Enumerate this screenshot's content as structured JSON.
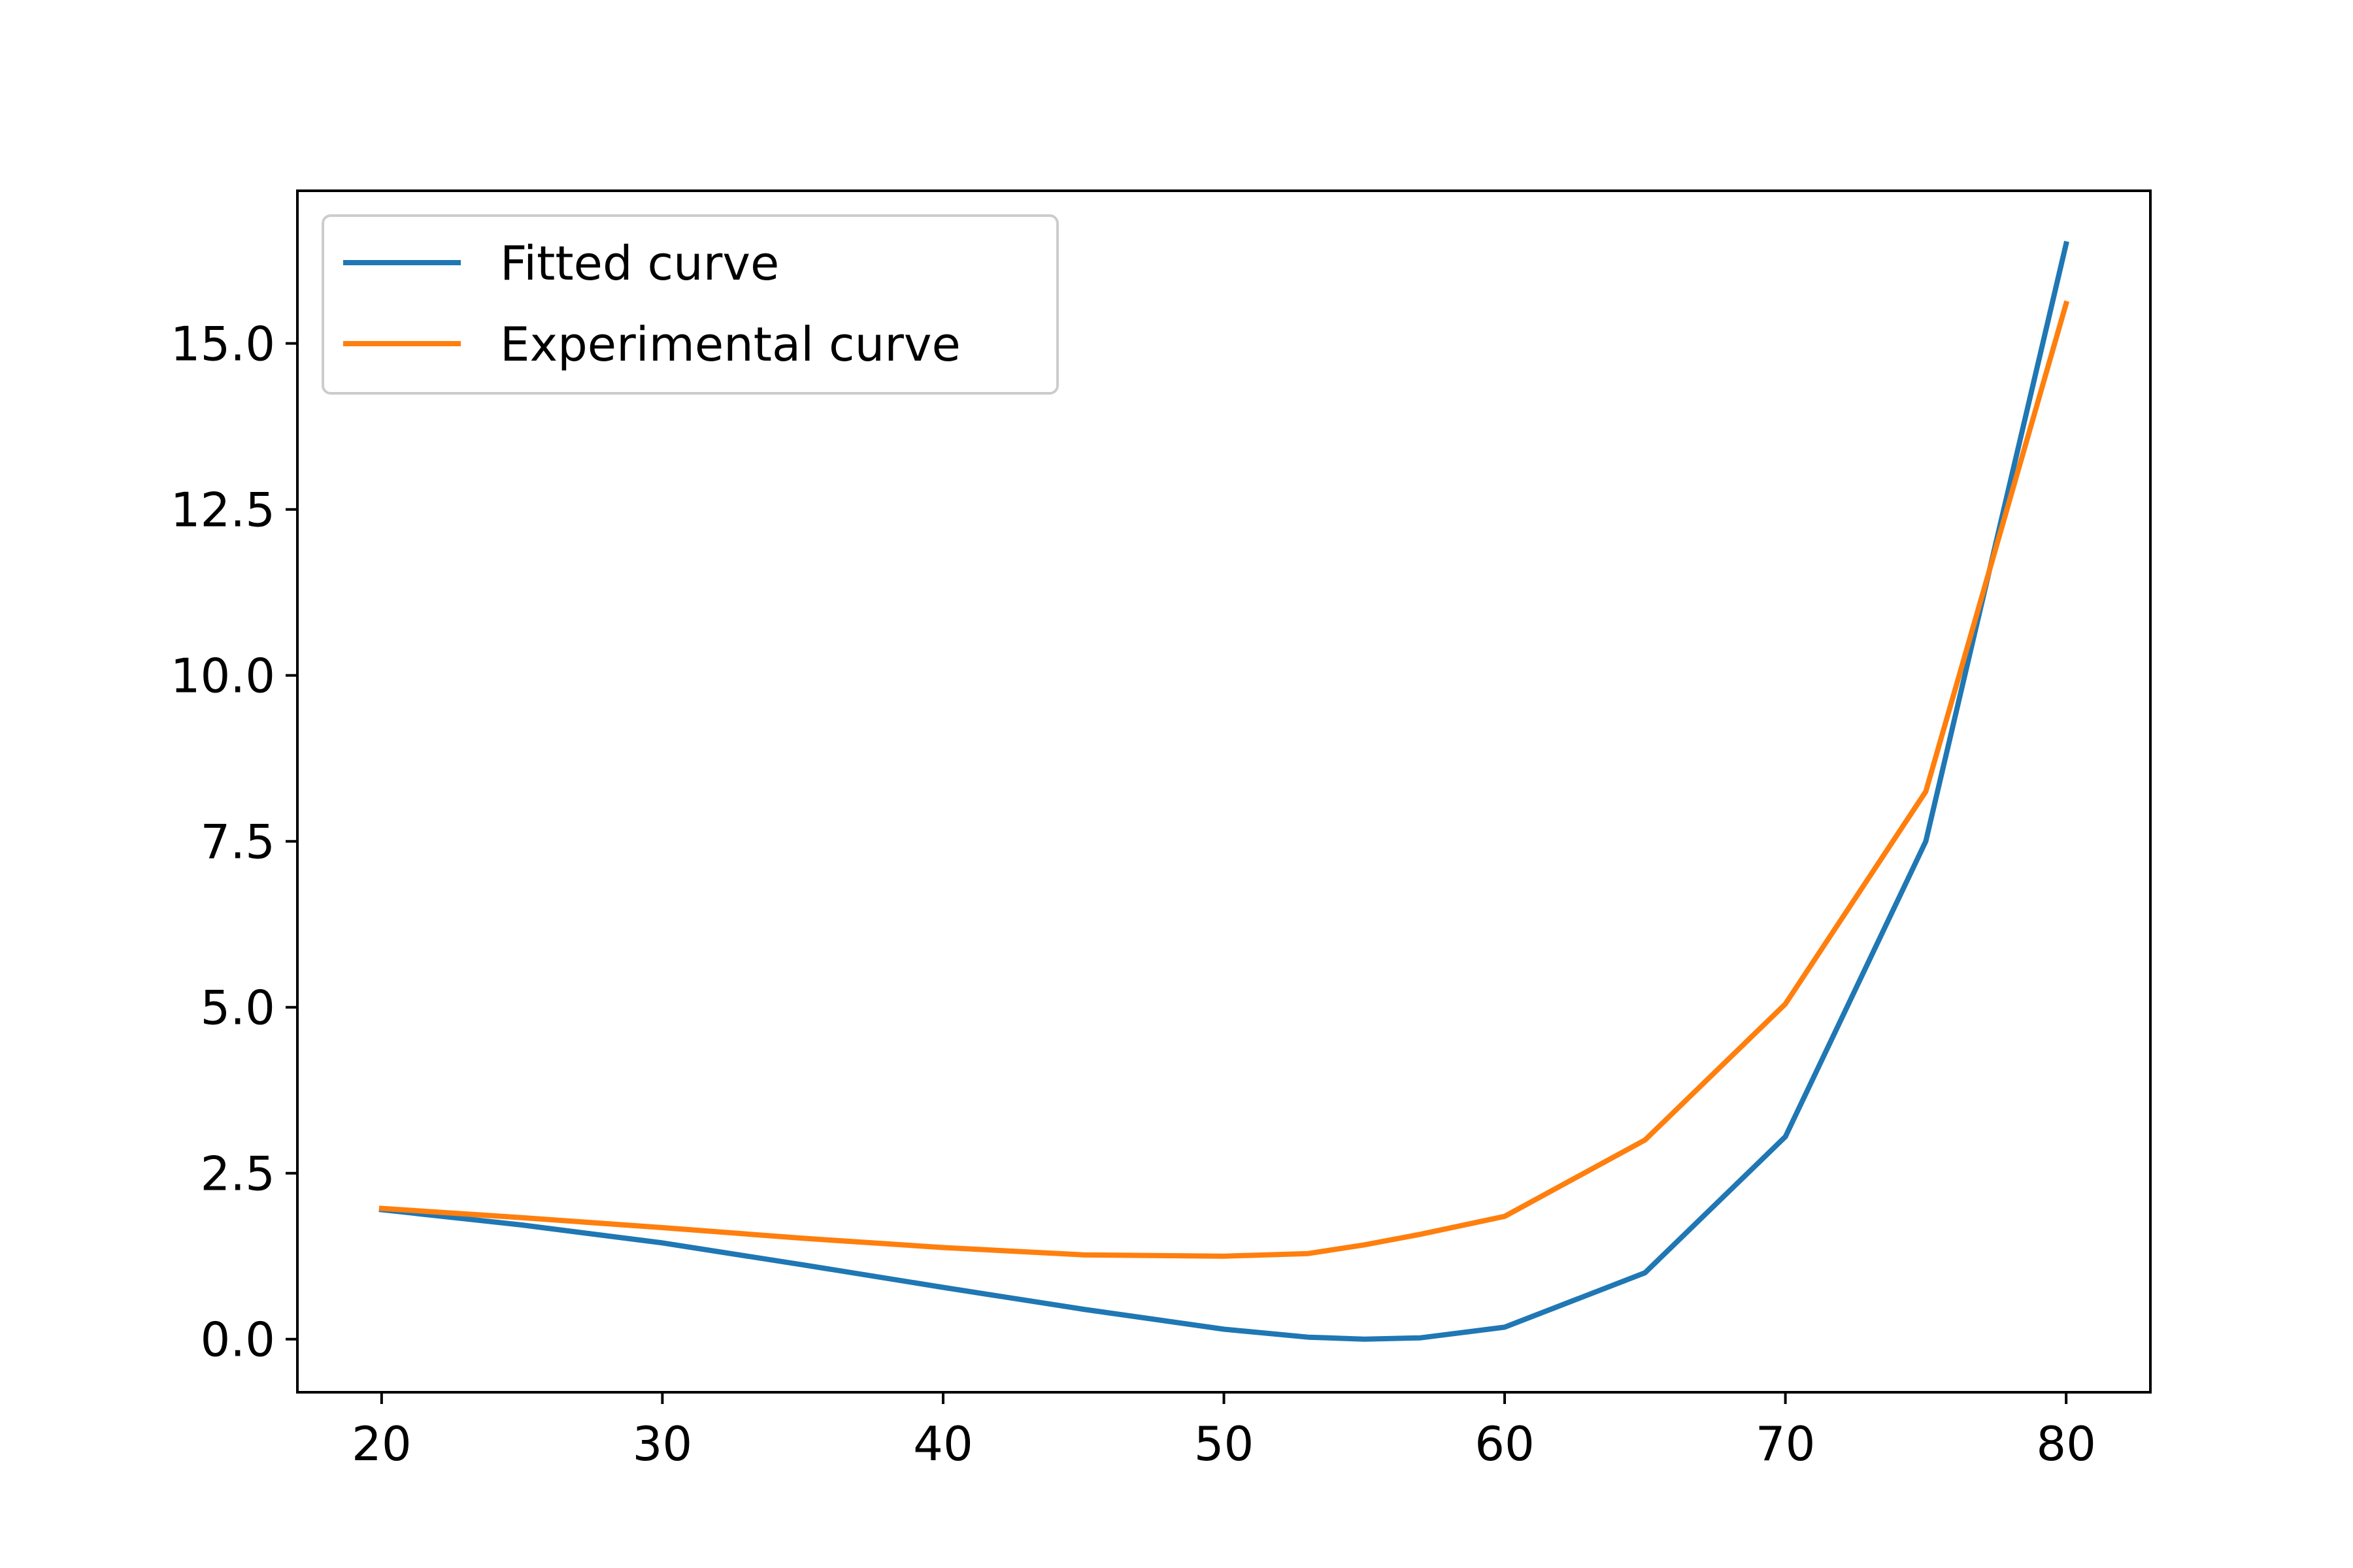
{
  "chart_data": {
    "type": "line",
    "title": "",
    "xlabel": "",
    "ylabel": "",
    "xlim": [
      17,
      83
    ],
    "ylim": [
      -0.8,
      17.3
    ],
    "x_ticks": [
      20,
      30,
      40,
      50,
      60,
      70,
      80
    ],
    "x_tick_labels": [
      "20",
      "30",
      "40",
      "50",
      "60",
      "70",
      "80"
    ],
    "y_ticks": [
      0.0,
      2.5,
      5.0,
      7.5,
      10.0,
      12.5,
      15.0
    ],
    "y_tick_labels": [
      "0.0",
      "2.5",
      "5.0",
      "7.5",
      "10.0",
      "12.5",
      "15.0"
    ],
    "grid": false,
    "legend_position": "top-left",
    "series": [
      {
        "name": "Fitted curve",
        "color": "#1f77b4",
        "x": [
          20,
          25,
          30,
          35,
          40,
          45,
          50,
          53,
          55,
          57,
          60,
          65,
          70,
          75,
          80
        ],
        "y": [
          1.95,
          1.72,
          1.45,
          1.12,
          0.78,
          0.45,
          0.15,
          0.03,
          0.0,
          0.02,
          0.18,
          1.0,
          3.05,
          7.5,
          16.5
        ]
      },
      {
        "name": "Experimental curve",
        "color": "#ff7f0e",
        "x": [
          20,
          25,
          30,
          35,
          40,
          45,
          50,
          53,
          55,
          57,
          60,
          65,
          70,
          75,
          80
        ],
        "y": [
          1.97,
          1.83,
          1.68,
          1.52,
          1.38,
          1.27,
          1.25,
          1.29,
          1.42,
          1.58,
          1.85,
          3.0,
          5.05,
          8.25,
          15.6
        ]
      }
    ]
  }
}
